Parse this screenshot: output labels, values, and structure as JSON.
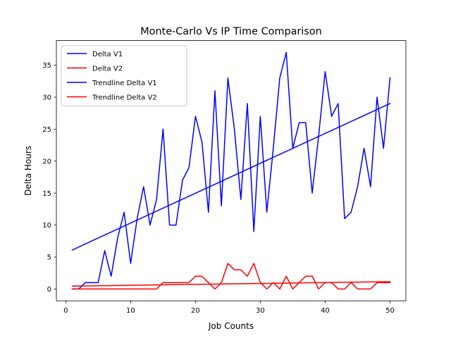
{
  "chart_data": {
    "type": "line",
    "title": "Monte-Carlo Vs IP Time Comparison",
    "xlabel": "Job Counts",
    "ylabel": "Delta Hours",
    "xlim": [
      -1.45,
      52.45
    ],
    "ylim": [
      -1.85,
      38.85
    ],
    "xticks": [
      0,
      10,
      20,
      30,
      40,
      50
    ],
    "yticks": [
      0,
      5,
      10,
      15,
      20,
      25,
      30,
      35
    ],
    "grid": false,
    "legend_position": "top-left",
    "x": [
      1,
      2,
      3,
      4,
      5,
      6,
      7,
      8,
      9,
      10,
      11,
      12,
      13,
      14,
      15,
      16,
      17,
      18,
      19,
      20,
      21,
      22,
      23,
      24,
      25,
      26,
      27,
      28,
      29,
      30,
      31,
      32,
      33,
      34,
      35,
      36,
      37,
      38,
      39,
      40,
      41,
      42,
      43,
      44,
      45,
      46,
      47,
      48,
      49,
      50
    ],
    "series": [
      {
        "name": "Delta V1",
        "color": "#0000ff",
        "values": [
          0,
          0,
          1,
          1,
          1,
          6,
          2,
          8,
          12,
          4,
          11,
          16,
          10,
          14,
          25,
          10,
          10,
          17,
          19,
          27,
          23,
          12,
          31,
          13,
          33,
          25,
          14,
          29,
          9,
          27,
          12,
          22,
          33,
          37,
          22,
          26,
          26,
          15,
          24,
          34,
          27,
          29,
          11,
          12,
          16,
          22,
          16,
          30,
          22,
          33
        ]
      },
      {
        "name": "Delta V2",
        "color": "#ff0000",
        "values": [
          0,
          0,
          0,
          0,
          0,
          0,
          0,
          0,
          0,
          0,
          0,
          0,
          0,
          0,
          1,
          1,
          1,
          1,
          1,
          2,
          2,
          1,
          0,
          1,
          4,
          3,
          3,
          2,
          4,
          1,
          0,
          1,
          0,
          2,
          0,
          1,
          2,
          2,
          0,
          1,
          1,
          0,
          0,
          1,
          0,
          0,
          0,
          1,
          1,
          1
        ]
      },
      {
        "name": "Trendline Delta V1",
        "color": "#0000ff",
        "x": [
          1,
          50
        ],
        "values": [
          6.1,
          29.0
        ]
      },
      {
        "name": "Trendline Delta V2",
        "color": "#ff0000",
        "x": [
          1,
          50
        ],
        "values": [
          0.45,
          1.15
        ]
      }
    ]
  }
}
